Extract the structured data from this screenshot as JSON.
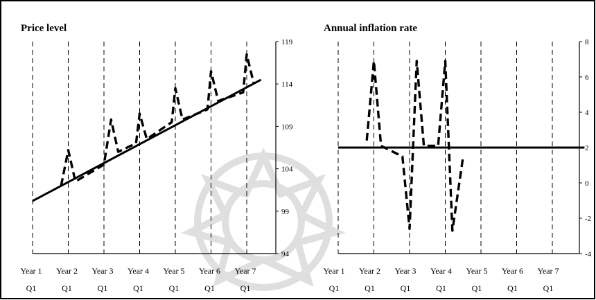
{
  "chart_data": [
    {
      "type": "line",
      "title": "Price level",
      "ylim": [
        94,
        119
      ],
      "yticks": [
        "119",
        "114",
        "109",
        "104",
        "99",
        "94"
      ],
      "ytick_values": [
        119,
        114,
        109,
        104,
        99,
        94
      ],
      "y_axis_side": "right",
      "x_range": [
        0,
        6.4
      ],
      "categories": [
        {
          "line1": "Year 1",
          "line2": "Q1"
        },
        {
          "line1": "Year 2",
          "line2": "Q1"
        },
        {
          "line1": "Year 3",
          "line2": "Q1"
        },
        {
          "line1": "Year 4",
          "line2": "Q1"
        },
        {
          "line1": "Year 5",
          "line2": "Q1"
        },
        {
          "line1": "Year 6",
          "line2": "Q1"
        },
        {
          "line1": "Year 7",
          "line2": "Q1"
        }
      ],
      "grid": "vertical dashed lines at each Year Q1",
      "series": [
        {
          "style": "solid",
          "x": [
            0,
            6.4
          ],
          "y": [
            100.2,
            114.5
          ]
        },
        {
          "style": "dashed",
          "x": [
            0.8,
            1.0,
            1.2,
            2.0,
            2.2,
            2.4,
            2.9,
            3.0,
            3.2,
            3.9,
            4.0,
            4.2,
            4.9,
            5.0,
            5.2,
            5.9,
            6.0,
            6.2
          ],
          "y": [
            102.0,
            106.2,
            102.5,
            104.5,
            109.8,
            106.0,
            107.0,
            110.5,
            107.5,
            109.5,
            113.5,
            109.8,
            111.0,
            115.5,
            112.0,
            113.0,
            117.5,
            114.0
          ]
        }
      ]
    },
    {
      "type": "line",
      "title": "Annual inflation rate",
      "ylim": [
        -4,
        8
      ],
      "yticks": [
        "8",
        "6",
        "4",
        "2",
        "0",
        "-2",
        "-4"
      ],
      "ytick_values": [
        8,
        6,
        4,
        2,
        0,
        -2,
        -4
      ],
      "y_axis_side": "right",
      "x_range": [
        0,
        6.9
      ],
      "categories": [
        {
          "line1": "Year 1",
          "line2": "Q1"
        },
        {
          "line1": "Year 2",
          "line2": "Q1"
        },
        {
          "line1": "Year 3",
          "line2": "Q1"
        },
        {
          "line1": "Year 4",
          "line2": "Q1"
        },
        {
          "line1": "Year 5",
          "line2": "Q1"
        },
        {
          "line1": "Year 6",
          "line2": "Q1"
        },
        {
          "line1": "Year 7",
          "line2": "Q1"
        }
      ],
      "grid": "vertical dashed lines at each Year Q1",
      "series": [
        {
          "style": "solid",
          "x": [
            0,
            6.9
          ],
          "y": [
            2,
            2
          ]
        },
        {
          "style": "dashed",
          "x": [
            0.8,
            1.0,
            1.2,
            1.8,
            2.0,
            2.2,
            2.4,
            2.8,
            3.0,
            3.2,
            3.5
          ],
          "y": [
            2.4,
            6.9,
            2.1,
            1.5,
            -2.6,
            6.9,
            2.1,
            2.1,
            6.9,
            -2.7,
            1.5
          ]
        }
      ]
    }
  ]
}
